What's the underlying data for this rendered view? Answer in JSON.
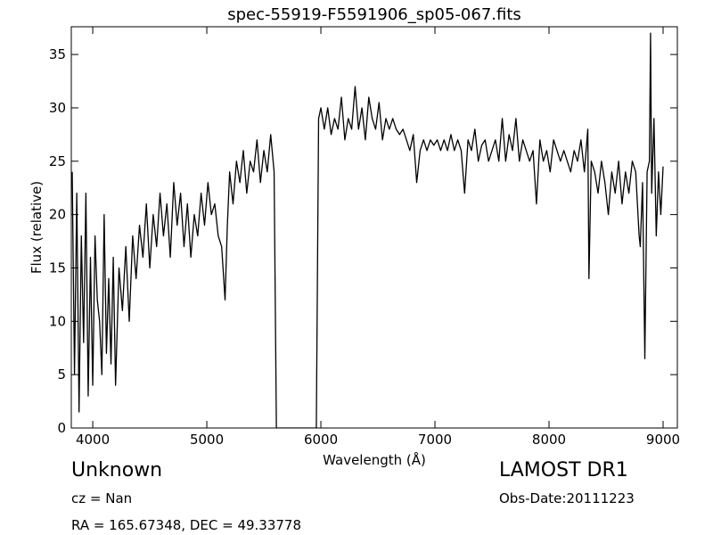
{
  "chart_data": {
    "type": "line",
    "title": "spec-55919-F5591906_sp05-067.fits",
    "x_label": "Wavelength (Å)",
    "y_label": "Flux (relative)",
    "annotations": [
      "Unknown",
      "cz = Nan",
      "RA = 165.67348, DEC = 49.33778",
      "LAMOST DR1",
      "Obs-Date:20111223"
    ],
    "color": "#000000",
    "xlim": [
      3812,
      9125
    ],
    "ylim": [
      0,
      37.6
    ],
    "xticks": [
      4000,
      5000,
      6000,
      7000,
      8000,
      9000
    ],
    "yticks": [
      0,
      5,
      10,
      15,
      20,
      25,
      30,
      35
    ],
    "x": [
      3820,
      3840,
      3860,
      3880,
      3900,
      3920,
      3940,
      3960,
      3980,
      4000,
      4020,
      4040,
      4060,
      4080,
      4100,
      4120,
      4140,
      4160,
      4180,
      4200,
      4230,
      4260,
      4290,
      4320,
      4350,
      4380,
      4410,
      4440,
      4470,
      4500,
      4530,
      4560,
      4590,
      4620,
      4650,
      4680,
      4710,
      4740,
      4770,
      4800,
      4830,
      4860,
      4890,
      4920,
      4950,
      4980,
      5010,
      5040,
      5070,
      5100,
      5130,
      5160,
      5180,
      5200,
      5230,
      5260,
      5290,
      5320,
      5350,
      5380,
      5410,
      5440,
      5470,
      5500,
      5530,
      5560,
      5590,
      5610,
      5650,
      5700,
      5800,
      5900,
      5960,
      5980,
      6000,
      6030,
      6060,
      6090,
      6120,
      6150,
      6180,
      6210,
      6240,
      6270,
      6300,
      6330,
      6360,
      6390,
      6420,
      6450,
      6480,
      6510,
      6540,
      6570,
      6600,
      6630,
      6660,
      6690,
      6720,
      6750,
      6780,
      6810,
      6840,
      6870,
      6900,
      6930,
      6960,
      6990,
      7020,
      7050,
      7080,
      7110,
      7140,
      7170,
      7200,
      7230,
      7260,
      7290,
      7320,
      7350,
      7380,
      7410,
      7440,
      7470,
      7500,
      7530,
      7560,
      7590,
      7620,
      7650,
      7680,
      7710,
      7740,
      7770,
      7800,
      7830,
      7860,
      7890,
      7920,
      7950,
      7980,
      8010,
      8040,
      8070,
      8100,
      8130,
      8160,
      8190,
      8220,
      8250,
      8280,
      8310,
      8340,
      8350,
      8370,
      8400,
      8430,
      8460,
      8490,
      8520,
      8550,
      8580,
      8610,
      8640,
      8670,
      8700,
      8730,
      8760,
      8790,
      8800,
      8820,
      8840,
      8860,
      8880,
      8890,
      8900,
      8920,
      8940,
      8960,
      8980,
      9000
    ],
    "values": [
      24,
      5,
      22,
      1.5,
      18,
      8,
      22,
      3,
      16,
      4,
      18,
      12,
      10,
      5,
      20,
      7,
      14,
      6,
      16,
      4,
      15,
      11,
      17,
      10,
      18,
      14,
      19,
      16,
      21,
      15,
      20,
      17,
      22,
      18,
      21,
      16,
      23,
      19,
      22,
      17,
      21,
      16,
      20,
      18,
      22,
      19,
      23,
      20,
      21,
      18,
      17,
      12,
      19,
      24,
      21,
      25,
      23,
      26,
      22,
      25,
      24,
      27,
      23,
      26,
      24,
      27.5,
      24,
      0,
      0,
      0,
      0,
      0,
      0,
      29,
      30,
      28,
      30,
      27.5,
      29,
      28,
      31,
      27,
      29,
      28,
      32,
      28,
      30,
      27,
      31,
      29,
      28,
      30.5,
      27,
      29,
      28,
      29,
      28,
      27.5,
      28,
      27,
      26,
      27.5,
      23,
      26,
      27,
      26,
      27,
      26.5,
      27,
      26,
      27,
      26,
      27.5,
      26,
      27,
      26,
      22,
      27,
      26,
      28,
      25,
      26.5,
      27,
      25,
      26,
      27,
      25,
      29,
      25,
      27.5,
      26,
      29,
      25,
      27,
      26,
      25,
      26,
      21,
      27,
      25,
      26,
      24,
      27,
      26,
      25,
      26,
      25,
      24,
      26,
      25,
      27,
      24,
      28,
      14,
      25,
      24,
      22,
      25,
      23,
      20,
      24,
      22,
      25,
      21,
      24,
      22,
      25,
      24,
      18,
      17,
      23,
      6.5,
      24,
      25,
      37,
      22,
      29,
      18,
      24,
      20,
      24.5
    ]
  }
}
